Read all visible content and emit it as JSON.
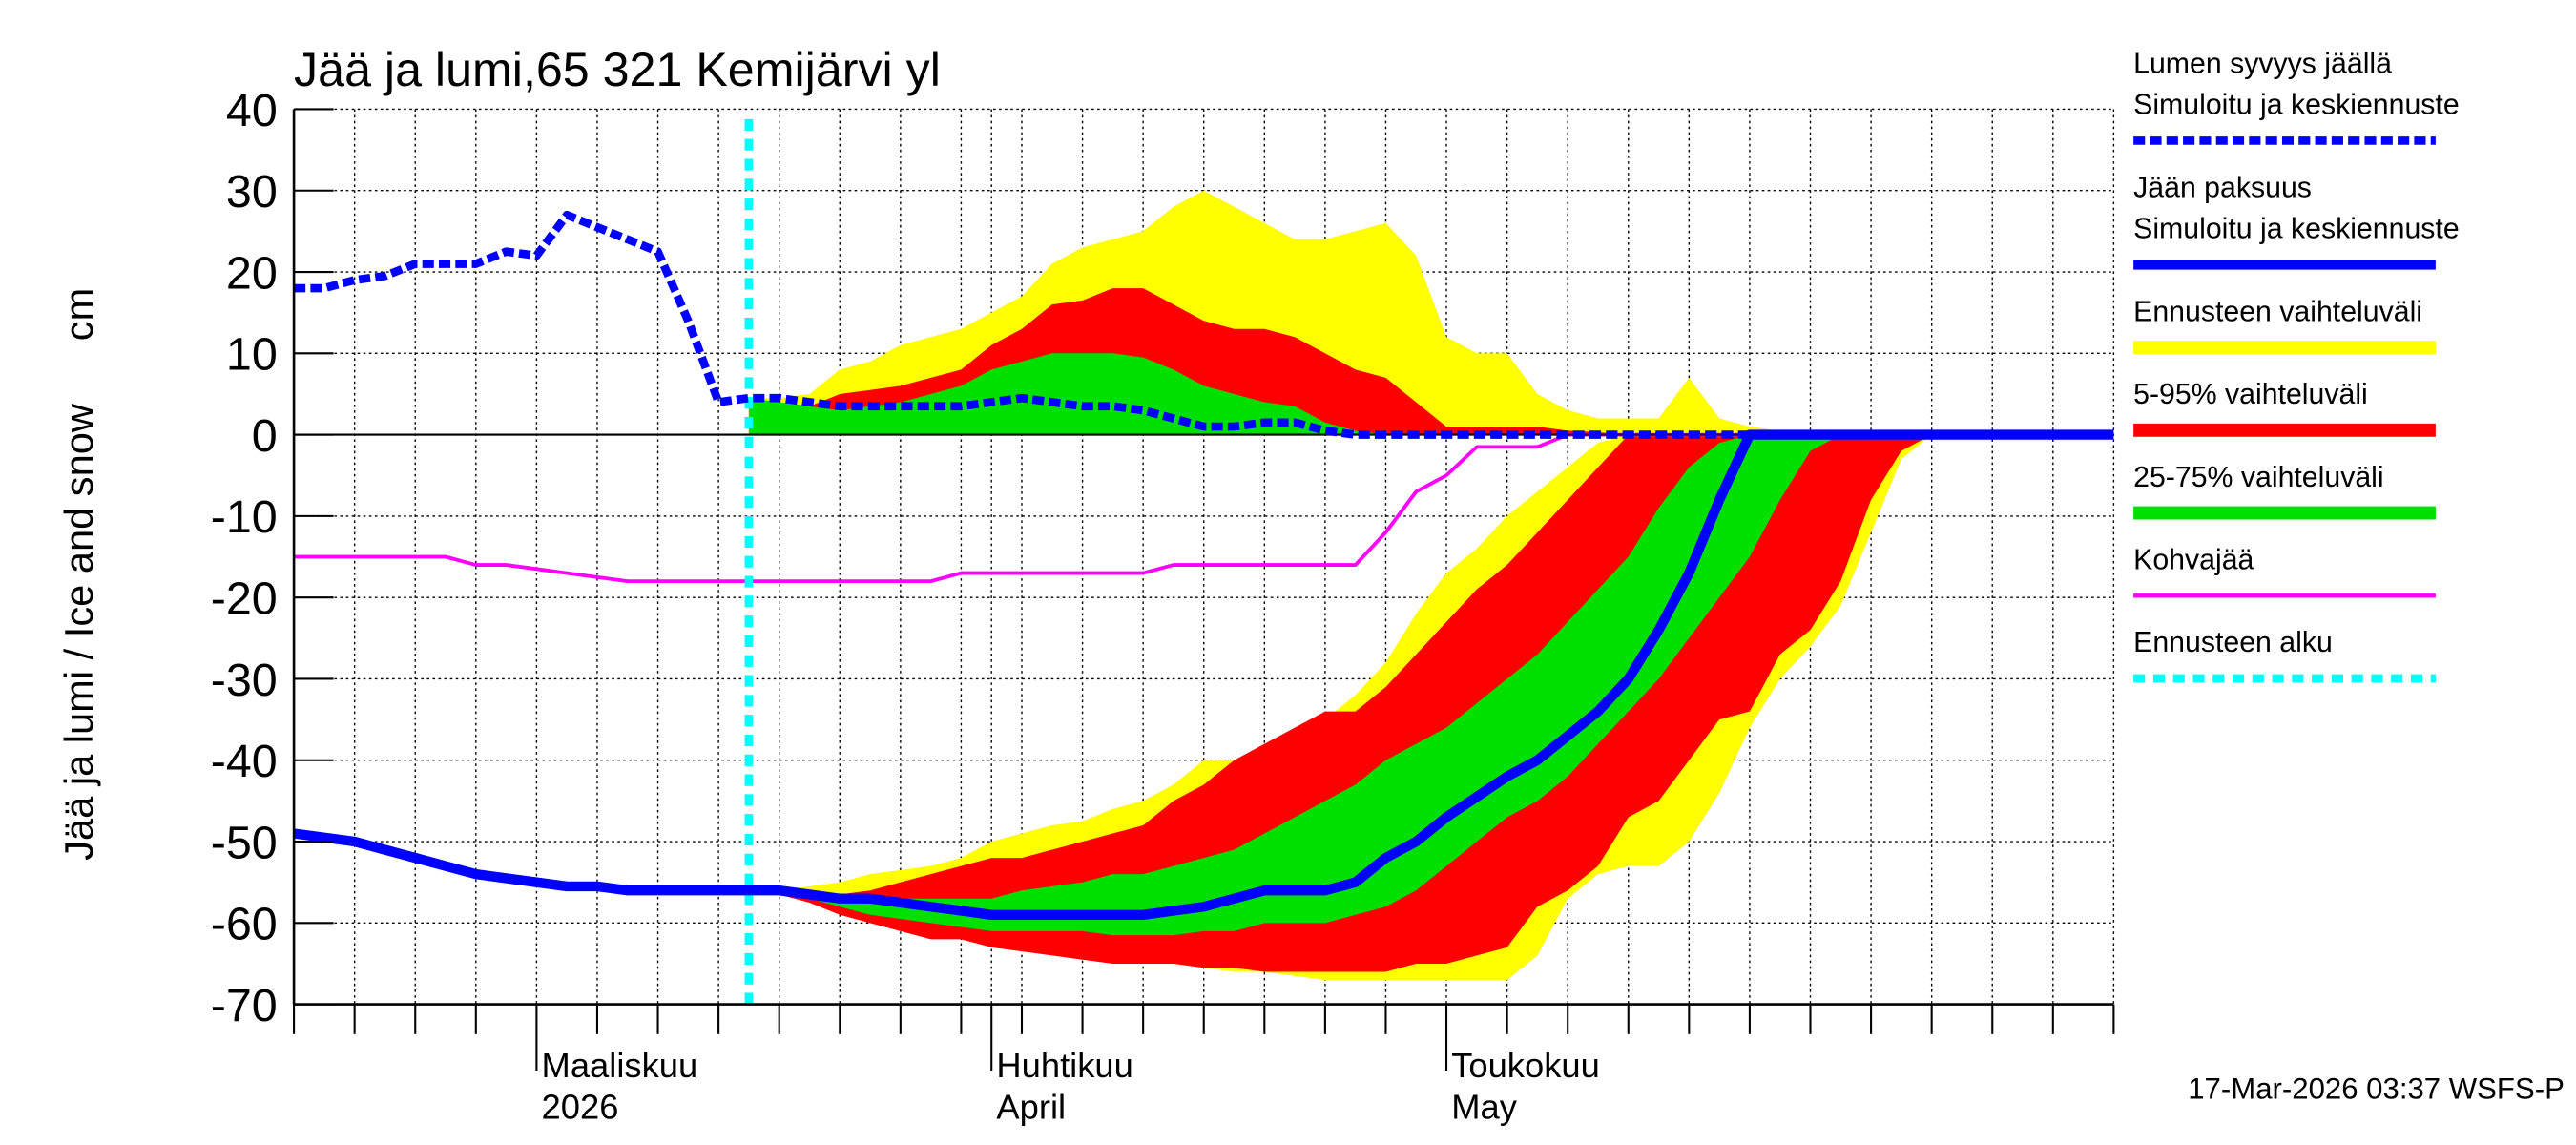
{
  "chart_data": {
    "type": "ice-snow",
    "title": "Jää ja lumi,65 321 Kemijärvi yl",
    "y_label": "Jää ja lumi / Ice and snow",
    "y_unit": "cm",
    "footer": "17-Mar-2026 03:37 WSFS-P",
    "categories": [
      null,
      null,
      null,
      null,
      null,
      null,
      null,
      null,
      "Maaliskuu",
      null,
      null,
      null,
      null,
      null,
      null,
      null,
      null,
      null,
      null,
      null,
      null,
      null,
      null,
      "Huhtikuu",
      null,
      null,
      null,
      null,
      null,
      null,
      null,
      null,
      null,
      null,
      null,
      null,
      null,
      null,
      "Toukokuu",
      null,
      null,
      null,
      null,
      null,
      null,
      null,
      null,
      null,
      null,
      null,
      null,
      null,
      null,
      null,
      null,
      null,
      null,
      null,
      null,
      null,
      null
    ],
    "categories_line2": [
      null,
      null,
      null,
      null,
      null,
      null,
      null,
      null,
      "2026",
      null,
      null,
      null,
      null,
      null,
      null,
      null,
      null,
      null,
      null,
      null,
      null,
      null,
      null,
      "April",
      null,
      null,
      null,
      null,
      null,
      null,
      null,
      null,
      null,
      null,
      null,
      null,
      null,
      null,
      "May",
      null,
      null,
      null,
      null,
      null,
      null,
      null,
      null,
      null,
      null,
      null,
      null,
      null,
      null,
      null,
      null,
      null,
      null,
      null,
      null,
      null,
      null
    ],
    "ylim": [
      -70,
      40
    ],
    "yticks": [
      -70,
      -60,
      -50,
      -40,
      -30,
      -20,
      -10,
      0,
      10,
      20,
      30,
      40
    ],
    "grid": true,
    "series": [
      {
        "name": [
          "Lumen syvyys jäällä",
          "Simuloitu ja keskiennuste"
        ],
        "color": "#0000ff",
        "style": "dashed",
        "values": [
          18,
          18,
          19,
          19.5,
          21,
          21,
          21,
          22.5,
          22,
          27,
          25.5,
          24,
          22.5,
          14,
          4,
          4.5,
          4.5,
          4,
          3.5,
          3.5,
          3.5,
          3.5,
          3.5,
          4,
          4.5,
          4,
          3.5,
          3.5,
          3,
          2,
          1,
          1,
          1.5,
          1.5,
          0.5,
          0,
          0,
          0,
          0,
          0,
          0,
          0,
          0,
          0,
          0,
          0,
          0,
          0,
          0,
          0,
          0,
          0,
          0,
          0,
          0,
          0,
          0,
          0,
          0,
          0,
          0
        ]
      },
      {
        "name": [
          "Jään paksuus",
          "Simuloitu ja keskiennuste"
        ],
        "color": "#0000ff",
        "style": "solid",
        "values": [
          -49,
          -49.5,
          -50,
          -51,
          -52,
          -53,
          -54,
          -54.5,
          -55,
          -55.5,
          -55.5,
          -56,
          -56,
          -56,
          -56,
          -56,
          -56,
          -56.5,
          -57,
          -57,
          -57.5,
          -58,
          -58.5,
          -59,
          -59,
          -59,
          -59,
          -59,
          -59,
          -58.5,
          -58,
          -57,
          -56,
          -56,
          -56,
          -55,
          -52,
          -50,
          -47,
          -44.5,
          -42,
          -40,
          -37,
          -34,
          -30,
          -24,
          -17,
          -8,
          0,
          0,
          0,
          0,
          0,
          0,
          0,
          0,
          0,
          0,
          0,
          0,
          0
        ]
      },
      {
        "name": [
          "Ennusteen vaihteluväli"
        ],
        "color": "#ffff00",
        "style": "band",
        "snow_high": [
          null,
          null,
          null,
          null,
          null,
          null,
          null,
          null,
          null,
          null,
          null,
          null,
          null,
          null,
          null,
          4.5,
          4.5,
          5,
          8,
          9,
          11,
          12,
          13,
          15,
          17,
          21,
          23,
          24,
          25,
          28,
          30,
          28,
          26,
          24,
          24,
          25,
          26,
          22,
          12,
          10,
          10,
          5,
          3,
          2,
          2,
          2,
          7,
          2,
          1,
          0.5,
          0,
          0,
          0,
          0,
          0,
          0,
          0,
          0,
          0,
          0,
          0
        ],
        "ice_low": [
          null,
          null,
          null,
          null,
          null,
          null,
          null,
          null,
          null,
          null,
          null,
          null,
          null,
          null,
          null,
          -56,
          -56,
          -57,
          -58,
          -59,
          -60,
          -61,
          -62,
          -62.5,
          -63,
          -63.5,
          -64,
          -64.5,
          -65,
          -65,
          -65.5,
          -66,
          -66,
          -66.5,
          -67,
          -67,
          -67,
          -67,
          -67,
          -67,
          -67,
          -64,
          -57,
          -54,
          -53,
          -53,
          -50,
          -44,
          -36,
          -30,
          -26,
          -21,
          -12,
          -3,
          0,
          0,
          0,
          0,
          0,
          0,
          0
        ],
        "ice_high": [
          null,
          null,
          null,
          null,
          null,
          null,
          null,
          null,
          null,
          null,
          null,
          null,
          null,
          null,
          null,
          -56,
          -56,
          -55.5,
          -55,
          -54,
          -53.5,
          -53,
          -52,
          -50,
          -49,
          -48,
          -47.5,
          -46,
          -45,
          -43,
          -40,
          -40,
          -39,
          -37,
          -35,
          -32,
          -28,
          -22,
          -17,
          -14,
          -10,
          -7,
          -4,
          -1,
          0,
          0,
          0,
          0,
          0,
          0,
          0,
          0,
          0,
          0,
          0,
          0,
          0,
          0,
          0,
          0,
          0
        ]
      },
      {
        "name": [
          "5-95% vaihteluväli"
        ],
        "color": "#ff0000",
        "style": "band",
        "snow_high": [
          null,
          null,
          null,
          null,
          null,
          null,
          null,
          null,
          null,
          null,
          null,
          null,
          null,
          null,
          null,
          4.5,
          4,
          3.5,
          5,
          5.5,
          6,
          7,
          8,
          11,
          13,
          16,
          16.5,
          18,
          18,
          16,
          14,
          13,
          13,
          12,
          10,
          8,
          7,
          4,
          1,
          1,
          1,
          1,
          0.5,
          0.3,
          0,
          0,
          0,
          0,
          0,
          0,
          0,
          0,
          0,
          0,
          0,
          0,
          0,
          0,
          0,
          0,
          0
        ],
        "ice_low": [
          null,
          null,
          null,
          null,
          null,
          null,
          null,
          null,
          null,
          null,
          null,
          null,
          null,
          null,
          null,
          -56,
          -56.5,
          -57.5,
          -59,
          -60,
          -61,
          -62,
          -62,
          -63,
          -63.5,
          -64,
          -64.5,
          -65,
          -65,
          -65,
          -65.5,
          -65.5,
          -66,
          -66,
          -66,
          -66,
          -66,
          -65,
          -65,
          -64,
          -63,
          -58,
          -56,
          -53,
          -47,
          -45,
          -40,
          -35,
          -34,
          -27,
          -24,
          -18,
          -8,
          -2,
          0,
          0,
          0,
          0,
          0,
          0,
          0
        ],
        "ice_high": [
          null,
          null,
          null,
          null,
          null,
          null,
          null,
          null,
          null,
          null,
          null,
          null,
          null,
          null,
          null,
          -56,
          -56,
          -56,
          -56.5,
          -56,
          -55,
          -54,
          -53,
          -52,
          -52,
          -51,
          -50,
          -49,
          -48,
          -45,
          -43,
          -40,
          -38,
          -36,
          -34,
          -34,
          -31,
          -27,
          -23,
          -19,
          -16,
          -12,
          -8,
          -4,
          0,
          0,
          0,
          0,
          0,
          0,
          0,
          0,
          0,
          0,
          0,
          0,
          0,
          0,
          0,
          0,
          0
        ]
      },
      {
        "name": [
          "25-75% vaihteluväli"
        ],
        "color": "#00e000",
        "style": "band",
        "snow_high": [
          null,
          null,
          null,
          null,
          null,
          null,
          null,
          null,
          null,
          null,
          null,
          null,
          null,
          null,
          null,
          4.5,
          4,
          3.5,
          3,
          3.5,
          4,
          5,
          6,
          8,
          9,
          10,
          10,
          10,
          9.5,
          8,
          6,
          5,
          4,
          3.5,
          1.5,
          0.5,
          0,
          0,
          0,
          0,
          0,
          0,
          0,
          0,
          0,
          0,
          0,
          0,
          0,
          0,
          0,
          0,
          0,
          0,
          0,
          0,
          0,
          0,
          0,
          0,
          0
        ],
        "ice_low": [
          null,
          null,
          null,
          null,
          null,
          null,
          null,
          null,
          null,
          null,
          null,
          null,
          null,
          null,
          null,
          -56,
          -56.5,
          -57,
          -58,
          -59,
          -59.5,
          -60,
          -60.5,
          -61,
          -61,
          -61,
          -61,
          -61.5,
          -61.5,
          -61.5,
          -61,
          -61,
          -60,
          -60,
          -60,
          -59,
          -58,
          -56,
          -53,
          -50,
          -47,
          -45,
          -42,
          -38,
          -34,
          -30,
          -25,
          -20,
          -15,
          -8,
          -2,
          0,
          0,
          0,
          0,
          0,
          0,
          0,
          0,
          0,
          0
        ],
        "ice_high": [
          null,
          null,
          null,
          null,
          null,
          null,
          null,
          null,
          null,
          null,
          null,
          null,
          null,
          null,
          null,
          -56,
          -56,
          -56.5,
          -57,
          -57,
          -57,
          -57,
          -57,
          -57,
          -56,
          -55.5,
          -55,
          -54,
          -54,
          -53,
          -52,
          -51,
          -49,
          -47,
          -45,
          -43,
          -40,
          -38,
          -36,
          -33,
          -30,
          -27,
          -23,
          -19,
          -15,
          -9,
          -4,
          -1,
          0,
          0,
          0,
          0,
          0,
          0,
          0,
          0,
          0,
          0,
          0,
          0,
          0
        ]
      },
      {
        "name": [
          "Kohvajää"
        ],
        "color": "#ff00ff",
        "style": "thin",
        "values": [
          -15,
          -15,
          -15,
          -15,
          -15,
          -15,
          -16,
          -16,
          -16.5,
          -17,
          -17.5,
          -18,
          -18,
          -18,
          -18,
          -18,
          -18,
          -18,
          -18,
          -18,
          -18,
          -18,
          -17,
          -17,
          -17,
          -17,
          -17,
          -17,
          -17,
          -16,
          -16,
          -16,
          -16,
          -16,
          -16,
          -16,
          -12,
          -7,
          -5,
          -1.5,
          -1.5,
          -1.5,
          0,
          0,
          0,
          0,
          0,
          0,
          0,
          0,
          0,
          0,
          0,
          0,
          0,
          0,
          0,
          0,
          0,
          0,
          0
        ]
      },
      {
        "name": [
          "Ennusteen alku"
        ],
        "color": "#00ffff",
        "style": "vline",
        "category_index": 15
      }
    ]
  }
}
